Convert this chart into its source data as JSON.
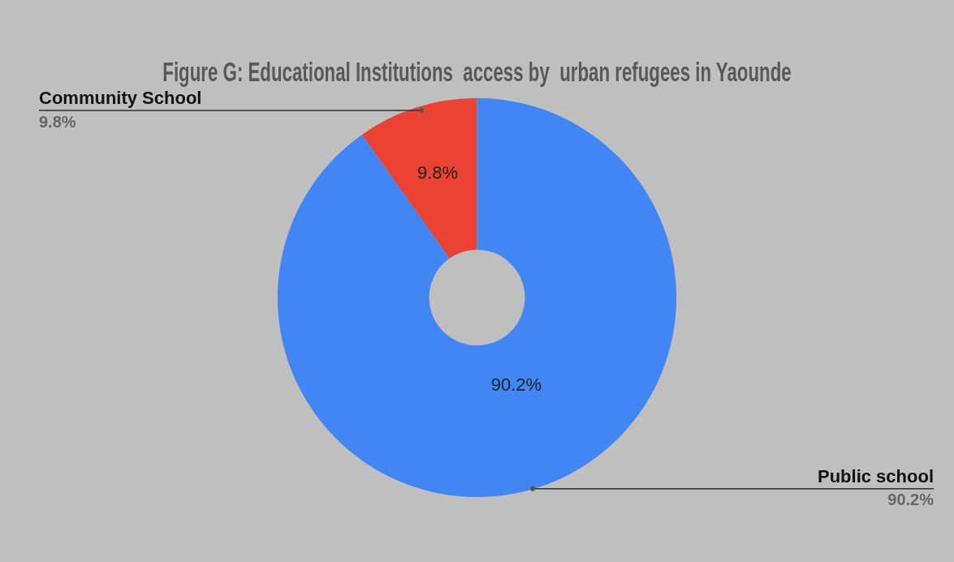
{
  "chart_data": {
    "type": "donut",
    "title": "Figure G: Educational Institutions  access by  urban refugees in Yaounde",
    "categories": [
      "Community School",
      "Public school"
    ],
    "values": [
      9.8,
      90.2
    ],
    "colors": [
      "#ea4335",
      "#4285f4"
    ],
    "value_labels": [
      "9.8%",
      "90.2%"
    ]
  }
}
